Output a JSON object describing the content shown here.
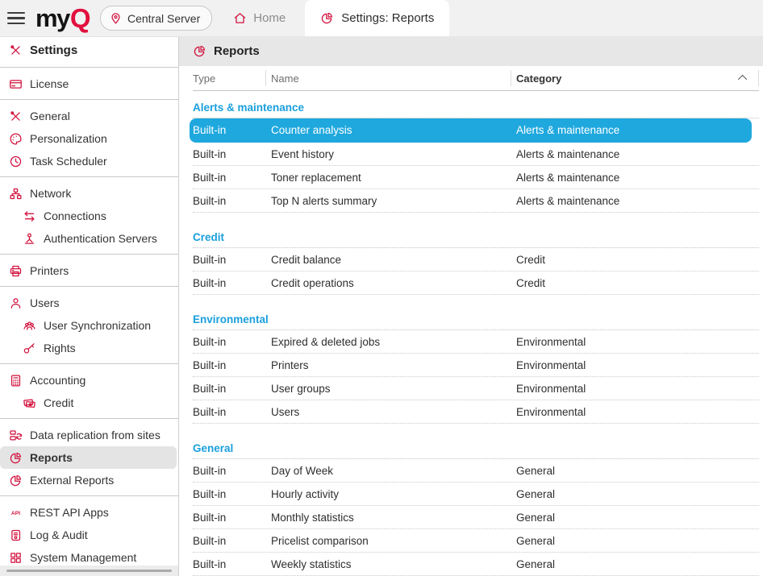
{
  "topbar": {
    "logo": {
      "my": "my",
      "q": "Q"
    },
    "server_button": {
      "label": "Central Server",
      "icon": "location-pin-icon"
    },
    "tabs": [
      {
        "label": "Home",
        "icon": "home-icon",
        "active": false
      },
      {
        "label": "Settings: Reports",
        "icon": "pie-chart-icon",
        "active": true
      }
    ]
  },
  "sidebar": {
    "title": {
      "label": "Settings",
      "icon": "tools-icon"
    },
    "groups": [
      {
        "items": [
          {
            "label": "License",
            "icon": "license-card-icon"
          }
        ]
      },
      {
        "items": [
          {
            "label": "General",
            "icon": "tools-icon"
          },
          {
            "label": "Personalization",
            "icon": "palette-icon"
          },
          {
            "label": "Task Scheduler",
            "icon": "clock-icon"
          }
        ]
      },
      {
        "items": [
          {
            "label": "Network",
            "icon": "network-icon"
          },
          {
            "label": "Connections",
            "icon": "swap-arrows-icon",
            "sub": true
          },
          {
            "label": "Authentication Servers",
            "icon": "auth-person-icon",
            "sub": true
          }
        ]
      },
      {
        "items": [
          {
            "label": "Printers",
            "icon": "printer-icon"
          }
        ]
      },
      {
        "items": [
          {
            "label": "Users",
            "icon": "user-icon"
          },
          {
            "label": "User Synchronization",
            "icon": "user-group-icon",
            "sub": true
          },
          {
            "label": "Rights",
            "icon": "key-icon",
            "sub": true
          }
        ]
      },
      {
        "items": [
          {
            "label": "Accounting",
            "icon": "calculator-icon"
          },
          {
            "label": "Credit",
            "icon": "banknote-icon",
            "sub": true
          }
        ]
      },
      {
        "items": [
          {
            "label": "Data replication from sites",
            "icon": "replication-icon"
          },
          {
            "label": "Reports",
            "icon": "pie-chart-icon",
            "selected": true
          },
          {
            "label": "External Reports",
            "icon": "pie-chart-icon"
          }
        ]
      },
      {
        "items": [
          {
            "label": "REST API Apps",
            "icon": "api-icon"
          },
          {
            "label": "Log & Audit",
            "icon": "scroll-icon"
          },
          {
            "label": "System Management",
            "icon": "grid-icon"
          }
        ]
      }
    ]
  },
  "main": {
    "title": {
      "label": "Reports",
      "icon": "pie-chart-icon"
    },
    "columns": [
      {
        "label": "Type"
      },
      {
        "label": "Name"
      },
      {
        "label": "Category",
        "sort": "asc"
      }
    ],
    "groups": [
      {
        "name": "Alerts & maintenance",
        "rows": [
          {
            "type": "Built-in",
            "name": "Counter analysis",
            "category": "Alerts & maintenance",
            "selected": true
          },
          {
            "type": "Built-in",
            "name": "Event history",
            "category": "Alerts & maintenance"
          },
          {
            "type": "Built-in",
            "name": "Toner replacement",
            "category": "Alerts & maintenance"
          },
          {
            "type": "Built-in",
            "name": "Top N alerts summary",
            "category": "Alerts & maintenance"
          }
        ]
      },
      {
        "name": "Credit",
        "rows": [
          {
            "type": "Built-in",
            "name": "Credit balance",
            "category": "Credit"
          },
          {
            "type": "Built-in",
            "name": "Credit operations",
            "category": "Credit"
          }
        ]
      },
      {
        "name": "Environmental",
        "rows": [
          {
            "type": "Built-in",
            "name": "Expired & deleted jobs",
            "category": "Environmental"
          },
          {
            "type": "Built-in",
            "name": "Printers",
            "category": "Environmental"
          },
          {
            "type": "Built-in",
            "name": "User groups",
            "category": "Environmental"
          },
          {
            "type": "Built-in",
            "name": "Users",
            "category": "Environmental"
          }
        ]
      },
      {
        "name": "General",
        "rows": [
          {
            "type": "Built-in",
            "name": "Day of Week",
            "category": "General"
          },
          {
            "type": "Built-in",
            "name": "Hourly activity",
            "category": "General"
          },
          {
            "type": "Built-in",
            "name": "Monthly statistics",
            "category": "General"
          },
          {
            "type": "Built-in",
            "name": "Pricelist comparison",
            "category": "General"
          },
          {
            "type": "Built-in",
            "name": "Weekly statistics",
            "category": "General"
          }
        ]
      }
    ]
  },
  "colors": {
    "brand_red": "#d2123e",
    "logo_red": "#e1103e",
    "selected_row_blue": "#1fa8de",
    "group_header_blue": "#1a9fdc",
    "sidebar_selected_bg": "#e4e4e4",
    "topbar_bg": "#f1f1f1",
    "main_header_bg": "#e7e7e7"
  }
}
